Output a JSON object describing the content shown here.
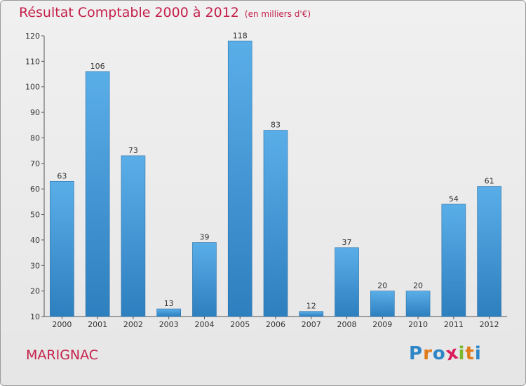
{
  "chart_data": {
    "type": "bar",
    "title": "Résultat Comptable 2000 à 2012",
    "subtitle": "(en milliers d'€)",
    "categories": [
      "2000",
      "2001",
      "2002",
      "2003",
      "2004",
      "2005",
      "2006",
      "2007",
      "2008",
      "2009",
      "2010",
      "2011",
      "2012"
    ],
    "values": [
      63,
      106,
      73,
      13,
      39,
      118,
      83,
      12,
      37,
      20,
      20,
      54,
      61
    ],
    "ylim": [
      10,
      120
    ],
    "yticks": [
      10,
      20,
      30,
      40,
      50,
      60,
      70,
      80,
      90,
      100,
      110,
      120
    ],
    "grid": false,
    "xlabel": "",
    "ylabel": "",
    "bar_color_light": "#5aaee8",
    "bar_color_dark": "#2d7fbe"
  },
  "footer": {
    "commune": "MARIGNAC",
    "logo_letters": [
      "P",
      "r",
      "o",
      "x",
      "i",
      "t",
      "i"
    ],
    "logo_colors": [
      "#2f86c6",
      "#e07b1c",
      "#2f86c6",
      "#d91e5b",
      "#7cb82f",
      "#e07b1c",
      "#2f86c6"
    ]
  },
  "colors": {
    "title": "#c4204a",
    "axis": "#555555"
  }
}
